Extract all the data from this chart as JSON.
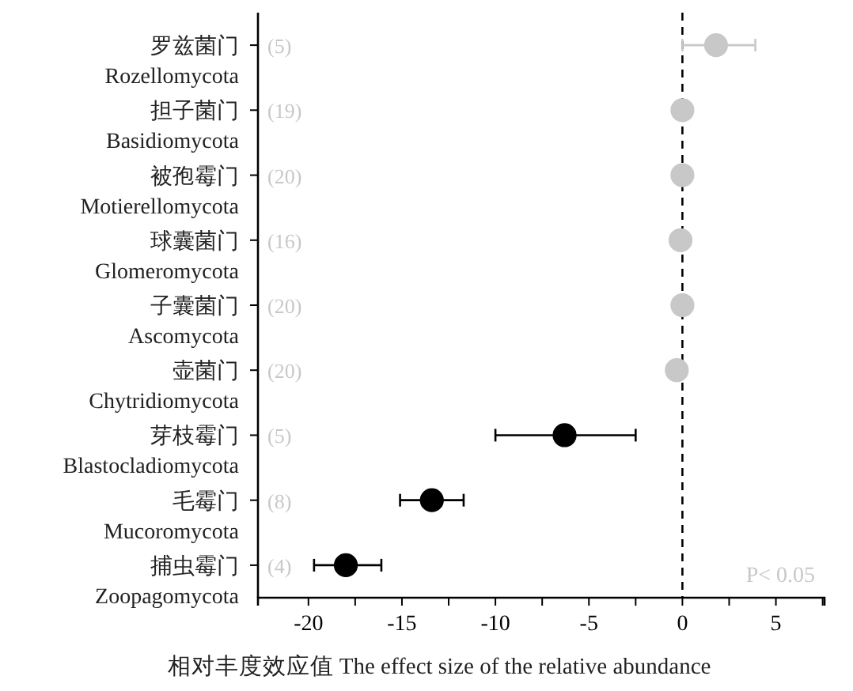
{
  "chart_data": {
    "type": "scatter",
    "orientation": "horizontal",
    "categories": [
      "罗兹菌门\nRozellomycota",
      "担子菌门\nBasidiomycota",
      "被孢霉门\nMotierellomycota",
      "球囊菌门\nGlomeromycota",
      "子囊菌门\nAscomycota",
      "壶菌门\nChytridiomycota",
      "芽枝霉门\nBlastocladiomycota",
      "毛霉门\nMucoromycota",
      "捕虫霉门\nZoopagomycota"
    ],
    "series": [
      {
        "color": "#c8c8c8",
        "values": [
          1.8,
          0,
          0,
          -0.1,
          0,
          -0.3,
          null,
          null,
          null
        ],
        "errors": [
          [
            0,
            3.9
          ],
          null,
          null,
          null,
          null,
          null,
          null,
          null,
          null
        ]
      },
      {
        "color": "#000000",
        "values": [
          null,
          null,
          null,
          null,
          null,
          null,
          -6.3,
          -13.4,
          -18.0
        ],
        "errors": [
          null,
          null,
          null,
          null,
          null,
          null,
          [
            -10.0,
            -2.5
          ],
          [
            -15.1,
            -11.7
          ],
          [
            -19.7,
            -16.1
          ]
        ]
      }
    ],
    "xlim": [
      -22.7,
      7.6
    ],
    "xticks": [
      -20,
      {
        "value": -17.5,
        "label": null
      },
      -15,
      {
        "value": -12.5,
        "label": null
      },
      -10,
      {
        "value": -7.5,
        "label": null
      },
      -5,
      {
        "value": -2.5,
        "label": null
      },
      0,
      {
        "value": 2.5,
        "label": null
      },
      5,
      {
        "value": 7.5,
        "label": null
      }
    ],
    "xlabel": "相对丰度效应值 The effect size of the relative abundance",
    "ref_lines": [
      {
        "axis": "x",
        "value": 0,
        "line_style": "dashed",
        "color": "#000000"
      }
    ],
    "annotations": [
      "(5)",
      "(19)",
      "(20)",
      "(16)",
      "(20)",
      "(20)",
      "(5)",
      "(8)",
      "(4)",
      "P< 0.05"
    ],
    "marker": "circle",
    "grid": false
  }
}
